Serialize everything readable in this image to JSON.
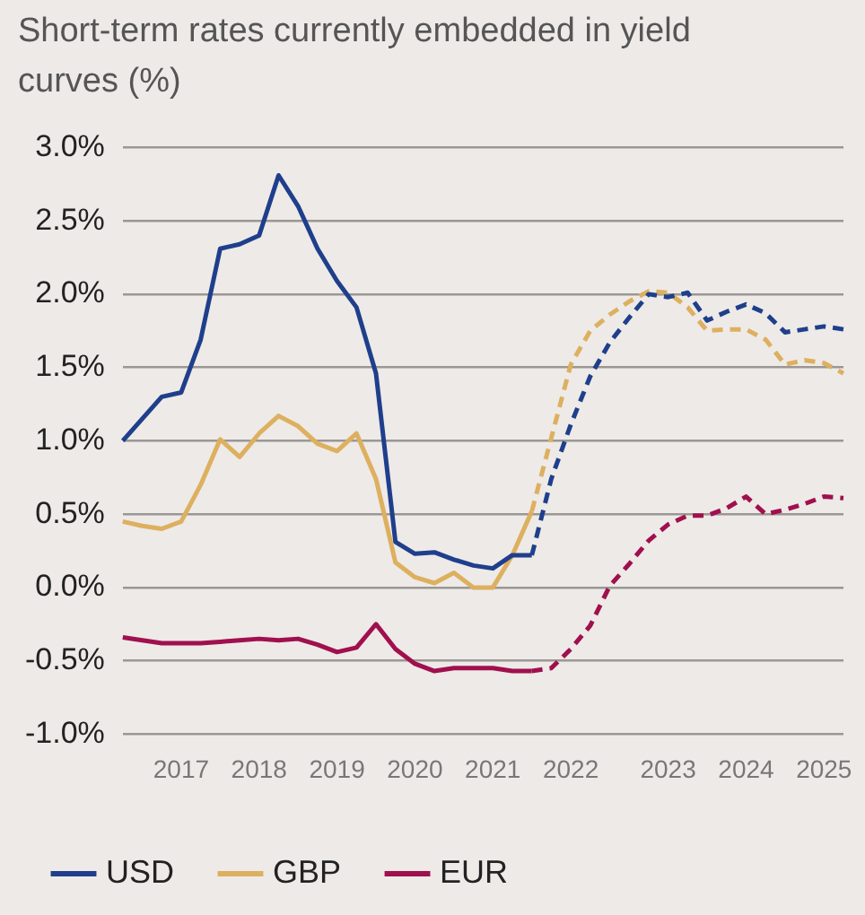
{
  "chart_data": {
    "type": "line",
    "title": "Short-term rates currently embedded in yield curves (%)",
    "categories": [
      null,
      null,
      null,
      "2017",
      null,
      null,
      null,
      "2018",
      null,
      null,
      null,
      "2019",
      null,
      null,
      null,
      "2020",
      null,
      null,
      null,
      "2021",
      null,
      null,
      null,
      "2022",
      null,
      null,
      null,
      null,
      "2023",
      null,
      null,
      null,
      "2024",
      null,
      null,
      null,
      "2025",
      null
    ],
    "series": [
      {
        "name": "USD",
        "color": "#1f3f8c",
        "line_style": "solid",
        "values": [
          1.0,
          1.15,
          1.3,
          1.33,
          1.69,
          2.31,
          2.34,
          2.4,
          2.81,
          2.6,
          2.31,
          2.09,
          1.91,
          1.46,
          0.31,
          0.23,
          0.24,
          0.19,
          0.15,
          0.13,
          0.22,
          0.22,
          null,
          null,
          null,
          null,
          null,
          null,
          null,
          null,
          null,
          null,
          null,
          null,
          null,
          null,
          null,
          null
        ]
      },
      {
        "color": "#1f3f8c",
        "line_style": "dashed",
        "values": [
          null,
          null,
          null,
          null,
          null,
          null,
          null,
          null,
          null,
          null,
          null,
          null,
          null,
          null,
          null,
          null,
          null,
          null,
          null,
          null,
          null,
          0.22,
          0.74,
          1.11,
          1.44,
          1.67,
          1.84,
          2.0,
          1.98,
          2.01,
          1.82,
          1.88,
          1.93,
          1.87,
          1.74,
          1.76,
          1.78,
          1.76
        ]
      },
      {
        "name": "GBP",
        "color": "#ddb060",
        "line_style": "solid",
        "values": [
          0.45,
          0.42,
          0.4,
          0.45,
          0.7,
          1.01,
          0.89,
          1.05,
          1.17,
          1.1,
          0.98,
          0.93,
          1.05,
          0.74,
          0.17,
          0.07,
          0.03,
          0.1,
          0.0,
          0.0,
          0.22,
          0.52,
          null,
          null,
          null,
          null,
          null,
          null,
          null,
          null,
          null,
          null,
          null,
          null,
          null,
          null,
          null,
          null
        ]
      },
      {
        "color": "#ddb060",
        "line_style": "dashed",
        "values": [
          null,
          null,
          null,
          null,
          null,
          null,
          null,
          null,
          null,
          null,
          null,
          null,
          null,
          null,
          null,
          null,
          null,
          null,
          null,
          null,
          null,
          0.52,
          1.02,
          1.52,
          1.75,
          1.86,
          1.95,
          2.02,
          2.01,
          1.91,
          1.75,
          1.76,
          1.76,
          1.69,
          1.52,
          1.55,
          1.53,
          1.46
        ]
      },
      {
        "name": "EUR",
        "color": "#a0104e",
        "line_style": "solid",
        "values": [
          -0.34,
          -0.36,
          -0.38,
          -0.38,
          -0.38,
          -0.37,
          -0.36,
          -0.35,
          -0.36,
          -0.35,
          -0.39,
          -0.44,
          -0.41,
          -0.25,
          -0.42,
          -0.52,
          -0.57,
          -0.55,
          -0.55,
          -0.55,
          -0.57,
          -0.57,
          null,
          null,
          null,
          null,
          null,
          null,
          null,
          null,
          null,
          null,
          null,
          null,
          null,
          null,
          null,
          null
        ]
      },
      {
        "color": "#a0104e",
        "line_style": "dashed",
        "values": [
          null,
          null,
          null,
          null,
          null,
          null,
          null,
          null,
          null,
          null,
          null,
          null,
          null,
          null,
          null,
          null,
          null,
          null,
          null,
          null,
          null,
          -0.57,
          -0.55,
          -0.42,
          -0.26,
          0.01,
          0.16,
          0.32,
          0.43,
          0.49,
          0.49,
          0.54,
          0.62,
          0.5,
          0.53,
          0.57,
          0.62,
          0.61
        ]
      }
    ],
    "ylim": [
      -1,
      3
    ],
    "yticks": [
      {
        "value": -1,
        "label": "-1.0%"
      },
      {
        "value": -0.5,
        "label": "-0.5%"
      },
      {
        "value": 0,
        "label": "0.0%"
      },
      {
        "value": 0.5,
        "label": "0.5%"
      },
      {
        "value": 1,
        "label": "1.0%"
      },
      {
        "value": 1.5,
        "label": "1.5%"
      },
      {
        "value": 2,
        "label": "2.0%"
      },
      {
        "value": 2.5,
        "label": "2.5%"
      },
      {
        "value": 3,
        "label": "3.0%"
      }
    ],
    "grid": "y",
    "legend": "bottom",
    "marker": "none"
  }
}
